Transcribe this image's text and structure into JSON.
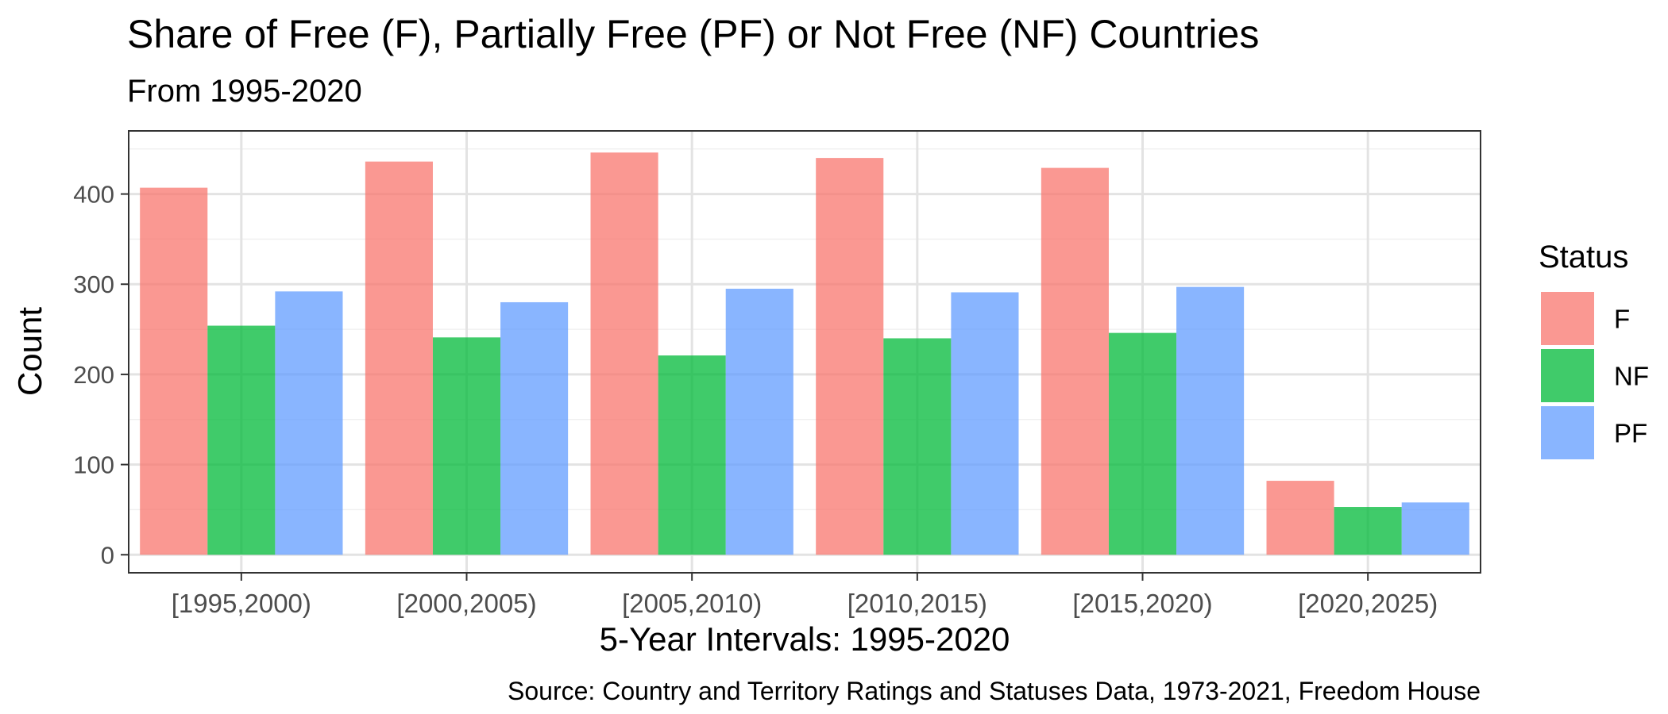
{
  "chart_data": {
    "type": "bar",
    "title": "Share of Free (F), Partially Free (PF) or Not Free (NF) Countries",
    "subtitle": "From 1995-2020",
    "xlabel": "5-Year Intervals: 1995-2020",
    "ylabel": "Count",
    "caption": "Source: Country and Territory Ratings and Statuses Data, 1973-2021, Freedom House",
    "categories": [
      "[1995,2000)",
      "[2000,2005)",
      "[2005,2010)",
      "[2010,2015)",
      "[2015,2020)",
      "[2020,2025)"
    ],
    "ylim": [
      -20,
      470
    ],
    "yticks": [
      0,
      100,
      200,
      300,
      400
    ],
    "grid": true,
    "legend": {
      "title": "Status",
      "position": "right"
    },
    "series": [
      {
        "name": "F",
        "color": "#F8766D",
        "values": [
          407,
          436,
          446,
          440,
          429,
          82
        ]
      },
      {
        "name": "NF",
        "color": "#00BA38",
        "values": [
          254,
          241,
          221,
          240,
          246,
          53
        ]
      },
      {
        "name": "PF",
        "color": "#619CFF",
        "values": [
          292,
          280,
          295,
          291,
          297,
          58
        ]
      }
    ]
  }
}
